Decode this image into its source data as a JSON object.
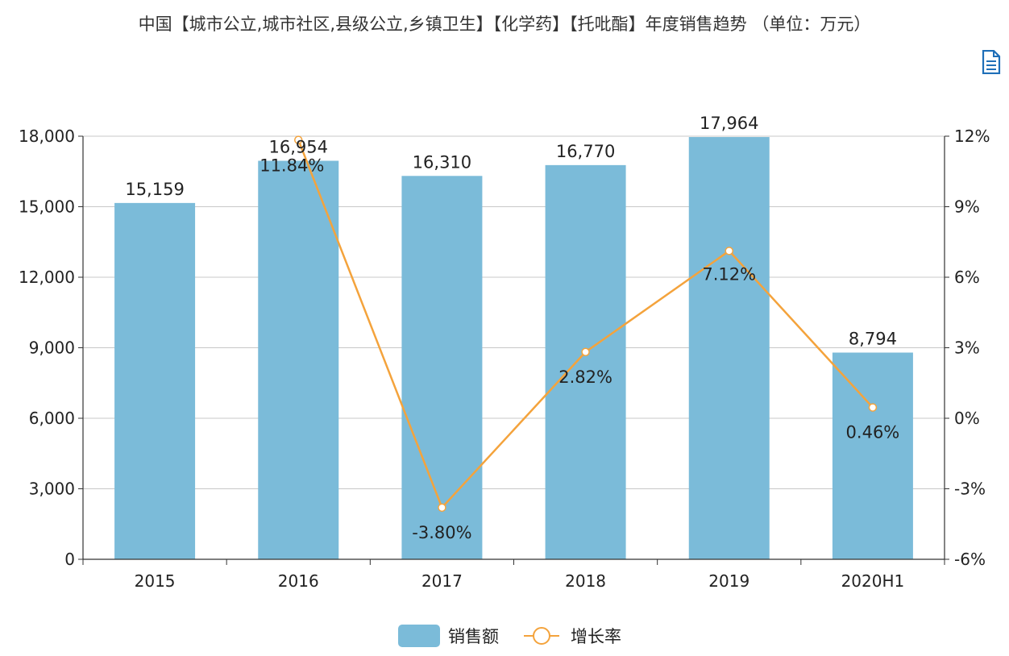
{
  "chart_data": {
    "type": "bar",
    "title": "中国【城市公立,城市社区,县级公立,乡镇卫生】【化学药】【托吡酯】年度销售趋势 （单位：万元）",
    "categories": [
      "2015",
      "2016",
      "2017",
      "2018",
      "2019",
      "2020H1"
    ],
    "series": [
      {
        "name": "销售额",
        "type": "bar",
        "axis": "left",
        "color": "#7bbbd9",
        "values": [
          15159,
          16954,
          16310,
          16770,
          17964,
          8794
        ],
        "labels": [
          "15,159",
          "16,954",
          "16,310",
          "16,770",
          "17,964",
          "8,794"
        ]
      },
      {
        "name": "增长率",
        "type": "line",
        "axis": "right",
        "color": "#f4a33c",
        "values": [
          null,
          11.84,
          -3.8,
          2.82,
          7.12,
          0.46
        ],
        "labels": [
          "",
          "11.84%",
          "-3.80%",
          "2.82%",
          "7.12%",
          "0.46%"
        ]
      }
    ],
    "y_left": {
      "lim": [
        0,
        18000
      ],
      "ticks": [
        "0",
        "3,000",
        "6,000",
        "9,000",
        "12,000",
        "15,000",
        "18,000"
      ]
    },
    "y_right": {
      "lim": [
        -6,
        12
      ],
      "ticks": [
        "-6%",
        "-3%",
        "0%",
        "3%",
        "6%",
        "9%",
        "12%"
      ]
    },
    "grid": true,
    "legend": "bottom-center"
  },
  "toolbar": {
    "icon": "document-icon"
  }
}
